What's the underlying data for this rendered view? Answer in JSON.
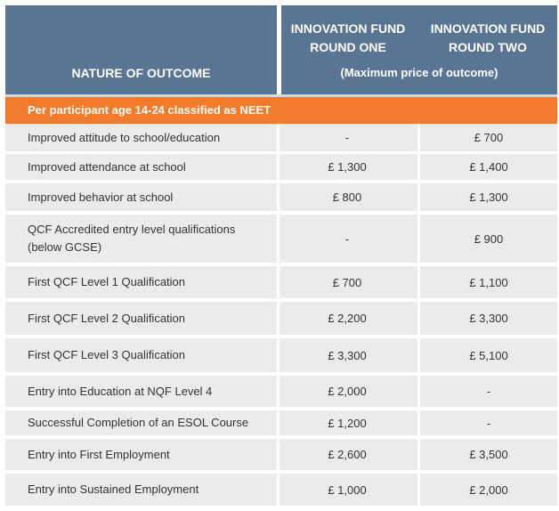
{
  "header": {
    "nature_label": "NATURE OF OUTCOME",
    "round_one": "INNOVATION FUND ROUND ONE",
    "round_two": "INNOVATION FUND ROUND TWO",
    "subtitle": "(Maximum price of outcome)"
  },
  "section_title": "Per participant age 14-24 classified as NEET",
  "rows": [
    {
      "label": "Improved attitude to school/education",
      "r1": "-",
      "r2": "£ 700"
    },
    {
      "label": "Improved attendance at school",
      "r1": "£ 1,300",
      "r2": "£ 1,400"
    },
    {
      "label": "Improved behavior at school",
      "r1": "£ 800",
      "r2": "£ 1,300"
    },
    {
      "label": "QCF Accredited entry level qualifications (below GCSE)",
      "r1": "-",
      "r2": "£ 900"
    },
    {
      "label": "First QCF Level 1 Qualification",
      "r1": "£ 700",
      "r2": "£ 1,100"
    },
    {
      "label": "First QCF Level 2 Qualification",
      "r1": "£ 2,200",
      "r2": "£ 3,300"
    },
    {
      "label": "First QCF Level 3 Qualification",
      "r1": "£ 3,300",
      "r2": "£ 5,100"
    },
    {
      "label": "Entry into Education at NQF Level 4",
      "r1": "£ 2,000",
      "r2": "-"
    },
    {
      "label": "Successful Completion of an ESOL Course",
      "r1": "£ 1,200",
      "r2": "-"
    },
    {
      "label": "Entry into First Employment",
      "r1": "£ 2,600",
      "r2": "£ 3,500"
    },
    {
      "label": "Entry into Sustained Employment",
      "r1": "£ 1,000",
      "r2": "£ 2,000"
    }
  ]
}
